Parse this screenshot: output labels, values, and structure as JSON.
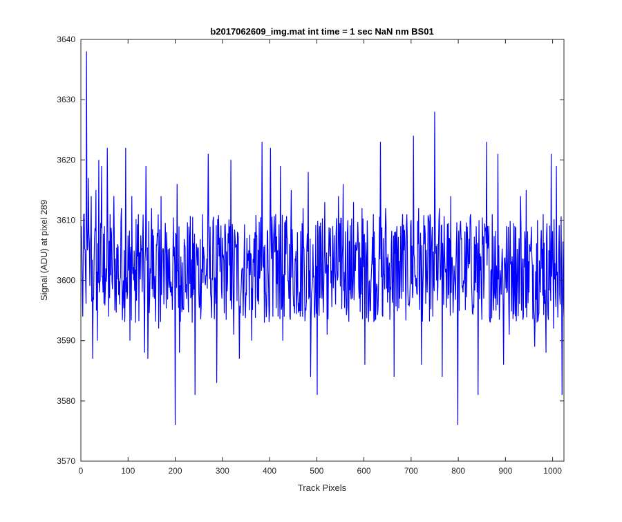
{
  "chart_data": {
    "type": "line",
    "title": "b2017062609_img.mat int time = 1 sec  NaN nm BS01",
    "xlabel": "Track Pixels",
    "ylabel": "Signal (ADU) at pixel 289",
    "xlim": [
      0,
      1024
    ],
    "ylim": [
      3570,
      3640
    ],
    "xticks": [
      0,
      100,
      200,
      300,
      400,
      500,
      600,
      700,
      800,
      900,
      1000
    ],
    "yticks": [
      3570,
      3580,
      3590,
      3600,
      3610,
      3620,
      3630,
      3640
    ],
    "grid": false,
    "legend": "none",
    "series_color": "#0000ff",
    "series": [
      {
        "x_start": 1,
        "x_step": 1,
        "values_note": "",
        "anchor_points": [
          [
            1,
            3609
          ],
          [
            4,
            3594
          ],
          [
            7,
            3611
          ],
          [
            10,
            3600
          ],
          [
            12,
            3638
          ],
          [
            14,
            3605
          ],
          [
            16,
            3617
          ],
          [
            20,
            3605
          ],
          [
            22,
            3614
          ],
          [
            25,
            3587
          ],
          [
            28,
            3603
          ],
          [
            32,
            3615
          ],
          [
            35,
            3590
          ],
          [
            38,
            3620
          ],
          [
            41,
            3600
          ],
          [
            44,
            3619
          ],
          [
            47,
            3598
          ],
          [
            50,
            3609
          ],
          [
            53,
            3602
          ],
          [
            56,
            3622
          ],
          [
            59,
            3594
          ],
          [
            62,
            3611
          ],
          [
            66,
            3600
          ],
          [
            70,
            3614
          ],
          [
            74,
            3598
          ],
          [
            78,
            3606
          ],
          [
            82,
            3596
          ],
          [
            86,
            3612
          ],
          [
            90,
            3600
          ],
          [
            95,
            3622
          ],
          [
            99,
            3598
          ],
          [
            104,
            3590
          ],
          [
            108,
            3614
          ],
          [
            112,
            3600
          ],
          [
            116,
            3593
          ],
          [
            122,
            3611
          ],
          [
            128,
            3605
          ],
          [
            135,
            3588
          ],
          [
            138,
            3619
          ],
          [
            142,
            3587
          ],
          [
            147,
            3602
          ],
          [
            150,
            3612
          ],
          [
            156,
            3597
          ],
          [
            160,
            3606
          ],
          [
            165,
            3592
          ],
          [
            170,
            3614
          ],
          [
            176,
            3596
          ],
          [
            182,
            3608
          ],
          [
            190,
            3598
          ],
          [
            197,
            3604
          ],
          [
            200,
            3576
          ],
          [
            204,
            3616
          ],
          [
            209,
            3588
          ],
          [
            215,
            3603
          ],
          [
            222,
            3598
          ],
          [
            230,
            3607
          ],
          [
            236,
            3593
          ],
          [
            242,
            3581
          ],
          [
            246,
            3605
          ],
          [
            252,
            3596
          ],
          [
            258,
            3611
          ],
          [
            263,
            3600
          ],
          [
            270,
            3621
          ],
          [
            276,
            3597
          ],
          [
            282,
            3605
          ],
          [
            288,
            3583
          ],
          [
            293,
            3604
          ],
          [
            299,
            3597
          ],
          [
            305,
            3609
          ],
          [
            311,
            3600
          ],
          [
            318,
            3620
          ],
          [
            324,
            3591
          ],
          [
            330,
            3606
          ],
          [
            336,
            3587
          ],
          [
            342,
            3602
          ],
          [
            350,
            3598
          ],
          [
            356,
            3605
          ],
          [
            362,
            3590
          ],
          [
            369,
            3608
          ],
          [
            377,
            3596
          ],
          [
            384,
            3623
          ],
          [
            389,
            3593
          ],
          [
            395,
            3608
          ],
          [
            402,
            3622
          ],
          [
            407,
            3594
          ],
          [
            413,
            3611
          ],
          [
            418,
            3594
          ],
          [
            423,
            3619
          ],
          [
            428,
            3590
          ],
          [
            434,
            3610
          ],
          [
            440,
            3600
          ],
          [
            446,
            3615
          ],
          [
            452,
            3596
          ],
          [
            459,
            3608
          ],
          [
            465,
            3594
          ],
          [
            471,
            3612
          ],
          [
            477,
            3595
          ],
          [
            482,
            3618
          ],
          [
            487,
            3584
          ],
          [
            492,
            3606
          ],
          [
            497,
            3598
          ],
          [
            501,
            3581
          ],
          [
            506,
            3609
          ],
          [
            511,
            3597
          ],
          [
            517,
            3613
          ],
          [
            522,
            3591
          ],
          [
            528,
            3604
          ],
          [
            534,
            3609
          ],
          [
            540,
            3596
          ],
          [
            546,
            3614
          ],
          [
            550,
            3599
          ],
          [
            556,
            3616
          ],
          [
            560,
            3600
          ],
          [
            566,
            3610
          ],
          [
            572,
            3598
          ],
          [
            578,
            3613
          ],
          [
            584,
            3605
          ],
          [
            590,
            3597
          ],
          [
            596,
            3612
          ],
          [
            602,
            3586
          ],
          [
            608,
            3606
          ],
          [
            614,
            3595
          ],
          [
            620,
            3611
          ],
          [
            626,
            3598
          ],
          [
            632,
            3604
          ],
          [
            635,
            3623
          ],
          [
            640,
            3594
          ],
          [
            646,
            3612
          ],
          [
            652,
            3598
          ],
          [
            658,
            3606
          ],
          [
            664,
            3584
          ],
          [
            670,
            3609
          ],
          [
            676,
            3597
          ],
          [
            682,
            3611
          ],
          [
            688,
            3600
          ],
          [
            694,
            3596
          ],
          [
            700,
            3610
          ],
          [
            705,
            3624
          ],
          [
            710,
            3599
          ],
          [
            716,
            3612
          ],
          [
            722,
            3586
          ],
          [
            728,
            3606
          ],
          [
            734,
            3598
          ],
          [
            740,
            3611
          ],
          [
            746,
            3594
          ],
          [
            750,
            3628
          ],
          [
            754,
            3600
          ],
          [
            760,
            3612
          ],
          [
            766,
            3584
          ],
          [
            772,
            3602
          ],
          [
            778,
            3597
          ],
          [
            784,
            3614
          ],
          [
            790,
            3598
          ],
          [
            796,
            3606
          ],
          [
            799,
            3576
          ],
          [
            804,
            3609
          ],
          [
            810,
            3598
          ],
          [
            816,
            3603
          ],
          [
            821,
            3602
          ],
          [
            826,
            3611
          ],
          [
            832,
            3596
          ],
          [
            838,
            3609
          ],
          [
            842,
            3581
          ],
          [
            848,
            3604
          ],
          [
            854,
            3597
          ],
          [
            860,
            3623
          ],
          [
            866,
            3594
          ],
          [
            872,
            3611
          ],
          [
            878,
            3597
          ],
          [
            884,
            3621
          ],
          [
            890,
            3600
          ],
          [
            896,
            3586
          ],
          [
            902,
            3609
          ],
          [
            908,
            3591
          ],
          [
            914,
            3604
          ],
          [
            920,
            3609
          ],
          [
            926,
            3600
          ],
          [
            932,
            3614
          ],
          [
            938,
            3594
          ],
          [
            944,
            3615
          ],
          [
            950,
            3598
          ],
          [
            956,
            3604
          ],
          [
            962,
            3589
          ],
          [
            968,
            3610
          ],
          [
            974,
            3598
          ],
          [
            980,
            3611
          ],
          [
            986,
            3588
          ],
          [
            992,
            3605
          ],
          [
            997,
            3621
          ],
          [
            1002,
            3592
          ],
          [
            1008,
            3619
          ],
          [
            1012,
            3600
          ],
          [
            1016,
            3596
          ],
          [
            1020,
            3581
          ],
          [
            1024,
            3594
          ]
        ]
      }
    ]
  }
}
